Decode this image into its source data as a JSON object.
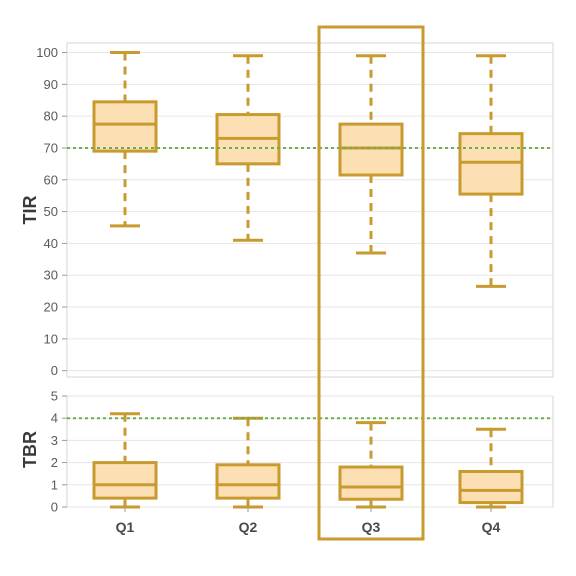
{
  "chart_data": [
    {
      "type": "box",
      "ylabel": "TIR",
      "categories": [
        "Q1",
        "Q2",
        "Q3",
        "Q4"
      ],
      "ylim": [
        -2,
        103
      ],
      "yticks": [
        0,
        10,
        20,
        30,
        40,
        50,
        60,
        70,
        80,
        90,
        100
      ],
      "grid": true,
      "reference_line": 70,
      "boxes": [
        {
          "min": 45.5,
          "q1": 69,
          "median": 77.5,
          "q3": 84.5,
          "max": 100
        },
        {
          "min": 41,
          "q1": 65,
          "median": 73,
          "q3": 80.5,
          "max": 99
        },
        {
          "min": 37,
          "q1": 61.5,
          "median": 70,
          "q3": 77.5,
          "max": 99
        },
        {
          "min": 26.5,
          "q1": 55.5,
          "median": 65.5,
          "q3": 74.5,
          "max": 99
        }
      ]
    },
    {
      "type": "box",
      "ylabel": "TBR",
      "categories": [
        "Q1",
        "Q2",
        "Q3",
        "Q4"
      ],
      "ylim": [
        0,
        5
      ],
      "yticks": [
        0,
        1,
        2,
        3,
        4,
        5
      ],
      "grid": true,
      "reference_line": 4,
      "boxes": [
        {
          "min": 0,
          "q1": 0.4,
          "median": 1.0,
          "q3": 2.0,
          "max": 4.2
        },
        {
          "min": 0,
          "q1": 0.4,
          "median": 1.0,
          "q3": 1.9,
          "max": 4.0
        },
        {
          "min": 0,
          "q1": 0.35,
          "median": 0.9,
          "q3": 1.8,
          "max": 3.8
        },
        {
          "min": 0,
          "q1": 0.2,
          "median": 0.75,
          "q3": 1.6,
          "max": 3.5
        }
      ]
    }
  ],
  "highlighted_category": "Q3",
  "colors": {
    "box_fill": "#fce0b4",
    "box_stroke": "#c99a2e",
    "reference_line": "#6ab04c",
    "grid": "#e6e6e6",
    "frame": "#d5d5d5"
  }
}
